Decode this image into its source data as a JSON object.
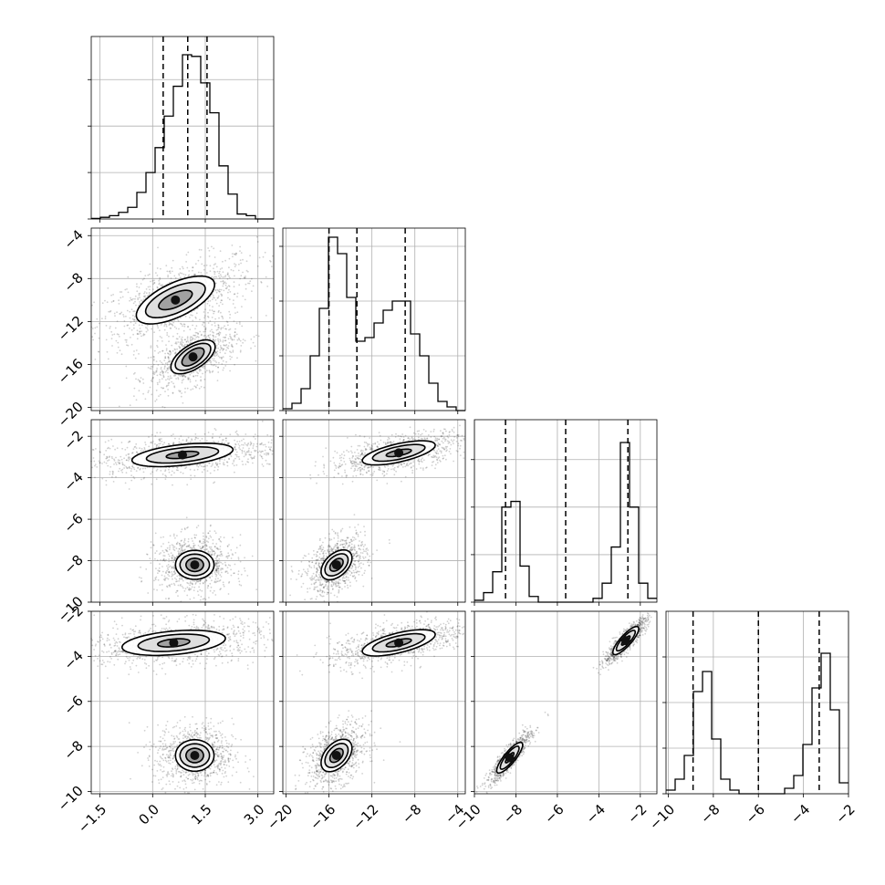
{
  "chart_data": {
    "type": "corner",
    "parameters": [
      {
        "range": [
          -1.75,
          3.45
        ],
        "ticks": [
          -1.5,
          0.0,
          1.5,
          3.0
        ],
        "tick_labels": [
          "−1.5",
          "0.0",
          "1.5",
          "3.0"
        ],
        "quantiles": [
          0.3,
          1.0,
          1.55
        ]
      },
      {
        "range": [
          -20.3,
          -3.3
        ],
        "ticks": [
          -20,
          -16,
          -12,
          -8,
          -4
        ],
        "tick_labels": [
          "−20",
          "−16",
          "−12",
          "−8",
          "−4"
        ],
        "quantiles": [
          -16.0,
          -13.4,
          -8.9
        ]
      },
      {
        "range": [
          -10.0,
          -1.2
        ],
        "ticks": [
          -10,
          -8,
          -6,
          -4,
          -2
        ],
        "tick_labels": [
          "−10",
          "−8",
          "−6",
          "−4",
          "−2"
        ],
        "quantiles": [
          -8.5,
          -5.6,
          -2.6
        ]
      },
      {
        "range": [
          -10.1,
          -2.0
        ],
        "ticks": [
          -10,
          -8,
          -6,
          -4,
          -2
        ],
        "tick_labels": [
          "−10",
          "−8",
          "−6",
          "−4",
          "−2"
        ],
        "quantiles": [
          -8.9,
          -6.0,
          -3.3
        ]
      }
    ],
    "hist_y_ticks": [
      {
        "ticks": [
          0,
          0.28,
          0.56,
          0.84
        ],
        "ymax": 1.1
      },
      {
        "ticks": [
          0,
          0.3,
          0.6,
          0.9
        ],
        "ymax": 1.0
      },
      {
        "ticks": [
          0,
          0.25,
          0.5,
          0.75
        ],
        "ymax": 0.96
      },
      {
        "ticks": [
          0,
          0.25,
          0.5,
          0.75
        ],
        "ymax": 1.0
      }
    ],
    "histograms": [
      {
        "bin_edges": [
          -1.75,
          -1.49,
          -1.23,
          -0.97,
          -0.71,
          -0.45,
          -0.19,
          0.07,
          0.33,
          0.59,
          0.85,
          1.11,
          1.37,
          1.63,
          1.89,
          2.15,
          2.41,
          2.67,
          2.93,
          3.19,
          3.45
        ],
        "counts": [
          0.003,
          0.01,
          0.02,
          0.04,
          0.07,
          0.16,
          0.28,
          0.43,
          0.62,
          0.8,
          0.99,
          0.98,
          0.82,
          0.64,
          0.32,
          0.15,
          0.03,
          0.02,
          0.0,
          0.0
        ]
      },
      {
        "bin_edges": [
          -20.3,
          -19.45,
          -18.6,
          -17.75,
          -16.9,
          -16.05,
          -15.2,
          -14.35,
          -13.5,
          -12.65,
          -11.8,
          -10.95,
          -10.1,
          -9.25,
          -8.4,
          -7.55,
          -6.7,
          -5.85,
          -5.0,
          -4.15,
          -3.3
        ],
        "counts": [
          0.01,
          0.04,
          0.12,
          0.3,
          0.56,
          0.95,
          0.86,
          0.62,
          0.38,
          0.4,
          0.48,
          0.55,
          0.6,
          0.6,
          0.42,
          0.3,
          0.15,
          0.05,
          0.02,
          0.0
        ]
      },
      {
        "bin_edges": [
          -10.0,
          -9.56,
          -9.12,
          -8.68,
          -8.24,
          -7.8,
          -7.36,
          -6.92,
          -6.48,
          -6.04,
          -5.6,
          -5.16,
          -4.72,
          -4.28,
          -3.84,
          -3.4,
          -2.96,
          -2.52,
          -2.08,
          -1.64,
          -1.2
        ],
        "counts": [
          0.01,
          0.05,
          0.16,
          0.5,
          0.53,
          0.19,
          0.03,
          0.0,
          0.0,
          0.0,
          0.0,
          0.0,
          0.0,
          0.02,
          0.1,
          0.29,
          0.84,
          0.5,
          0.1,
          0.02
        ]
      },
      {
        "bin_edges": [
          -10.1,
          -9.695,
          -9.29,
          -8.885,
          -8.48,
          -8.075,
          -7.67,
          -7.265,
          -6.86,
          -6.455,
          -6.05,
          -5.645,
          -5.24,
          -4.835,
          -4.43,
          -4.025,
          -3.62,
          -3.215,
          -2.81,
          -2.405,
          -2.0
        ],
        "counts": [
          0.02,
          0.08,
          0.21,
          0.56,
          0.67,
          0.3,
          0.08,
          0.02,
          0.0,
          0.0,
          0.0,
          0.0,
          0.0,
          0.03,
          0.1,
          0.27,
          0.58,
          0.77,
          0.46,
          0.06
        ]
      }
    ],
    "pair_modes": [
      {
        "row": 1,
        "col": 0,
        "modes": [
          {
            "center": [
              0.65,
              -10.0
            ],
            "spread": [
              1.0,
              1.8
            ],
            "corr": 0.6,
            "levels": [
              [
                1.05,
                2.1
              ],
              [
                0.8,
                1.55
              ],
              [
                0.45,
                0.85
              ]
            ]
          },
          {
            "center": [
              1.15,
              -15.3
            ],
            "spread": [
              0.55,
              1.3
            ],
            "corr": 0.55,
            "levels": [
              [
                0.6,
                1.5
              ],
              [
                0.48,
                1.2
              ],
              [
                0.3,
                0.8
              ]
            ]
          }
        ]
      },
      {
        "row": 2,
        "col": 0,
        "modes": [
          {
            "center": [
              0.85,
              -2.9
            ],
            "spread": [
              1.25,
              0.45
            ],
            "corr": 0.4,
            "levels": [
              [
                1.4,
                0.55
              ],
              [
                1.0,
                0.38
              ],
              [
                0.45,
                0.17
              ]
            ]
          },
          {
            "center": [
              1.2,
              -8.2
            ],
            "spread": [
              0.48,
              0.6
            ],
            "corr": 0.0,
            "levels": [
              [
                0.55,
                0.7
              ],
              [
                0.42,
                0.52
              ],
              [
                0.25,
                0.32
              ]
            ]
          }
        ]
      },
      {
        "row": 2,
        "col": 1,
        "modes": [
          {
            "center": [
              -9.5,
              -2.8
            ],
            "spread": [
              2.8,
              0.45
            ],
            "corr": 0.6,
            "levels": [
              [
                3.2,
                0.55
              ],
              [
                2.3,
                0.38
              ],
              [
                1.1,
                0.17
              ]
            ]
          },
          {
            "center": [
              -15.3,
              -8.2
            ],
            "spread": [
              1.2,
              0.6
            ],
            "corr": 0.4,
            "levels": [
              [
                1.4,
                0.7
              ],
              [
                1.05,
                0.52
              ],
              [
                0.6,
                0.3
              ]
            ]
          }
        ]
      },
      {
        "row": 3,
        "col": 0,
        "modes": [
          {
            "center": [
              0.6,
              -3.4
            ],
            "spread": [
              1.25,
              0.45
            ],
            "corr": 0.3,
            "levels": [
              [
                1.45,
                0.55
              ],
              [
                1.0,
                0.38
              ],
              [
                0.45,
                0.18
              ]
            ]
          },
          {
            "center": [
              1.2,
              -8.4
            ],
            "spread": [
              0.48,
              0.6
            ],
            "corr": 0.0,
            "levels": [
              [
                0.55,
                0.7
              ],
              [
                0.42,
                0.52
              ],
              [
                0.25,
                0.32
              ]
            ]
          }
        ]
      },
      {
        "row": 3,
        "col": 1,
        "modes": [
          {
            "center": [
              -9.5,
              -3.4
            ],
            "spread": [
              2.8,
              0.45
            ],
            "corr": 0.6,
            "levels": [
              [
                3.2,
                0.55
              ],
              [
                2.3,
                0.38
              ],
              [
                1.1,
                0.17
              ]
            ]
          },
          {
            "center": [
              -15.3,
              -8.4
            ],
            "spread": [
              1.2,
              0.6
            ],
            "corr": 0.4,
            "levels": [
              [
                1.4,
                0.7
              ],
              [
                1.05,
                0.52
              ],
              [
                0.6,
                0.3
              ]
            ]
          }
        ]
      },
      {
        "row": 3,
        "col": 2,
        "modes": [
          {
            "center": [
              -2.7,
              -3.3
            ],
            "spread": [
              0.45,
              0.45
            ],
            "corr": 0.9,
            "levels": [
              [
                0.55,
                0.55
              ],
              [
                0.4,
                0.4
              ],
              [
                0.18,
                0.18
              ]
            ]
          },
          {
            "center": [
              -8.3,
              -8.5
            ],
            "spread": [
              0.45,
              0.5
            ],
            "corr": 0.9,
            "levels": [
              [
                0.55,
                0.6
              ],
              [
                0.4,
                0.45
              ],
              [
                0.18,
                0.2
              ]
            ]
          }
        ]
      }
    ],
    "colors": {
      "line": "#000000",
      "grid": "#b0b0b0",
      "scatter": "#000000"
    },
    "grid": true
  }
}
